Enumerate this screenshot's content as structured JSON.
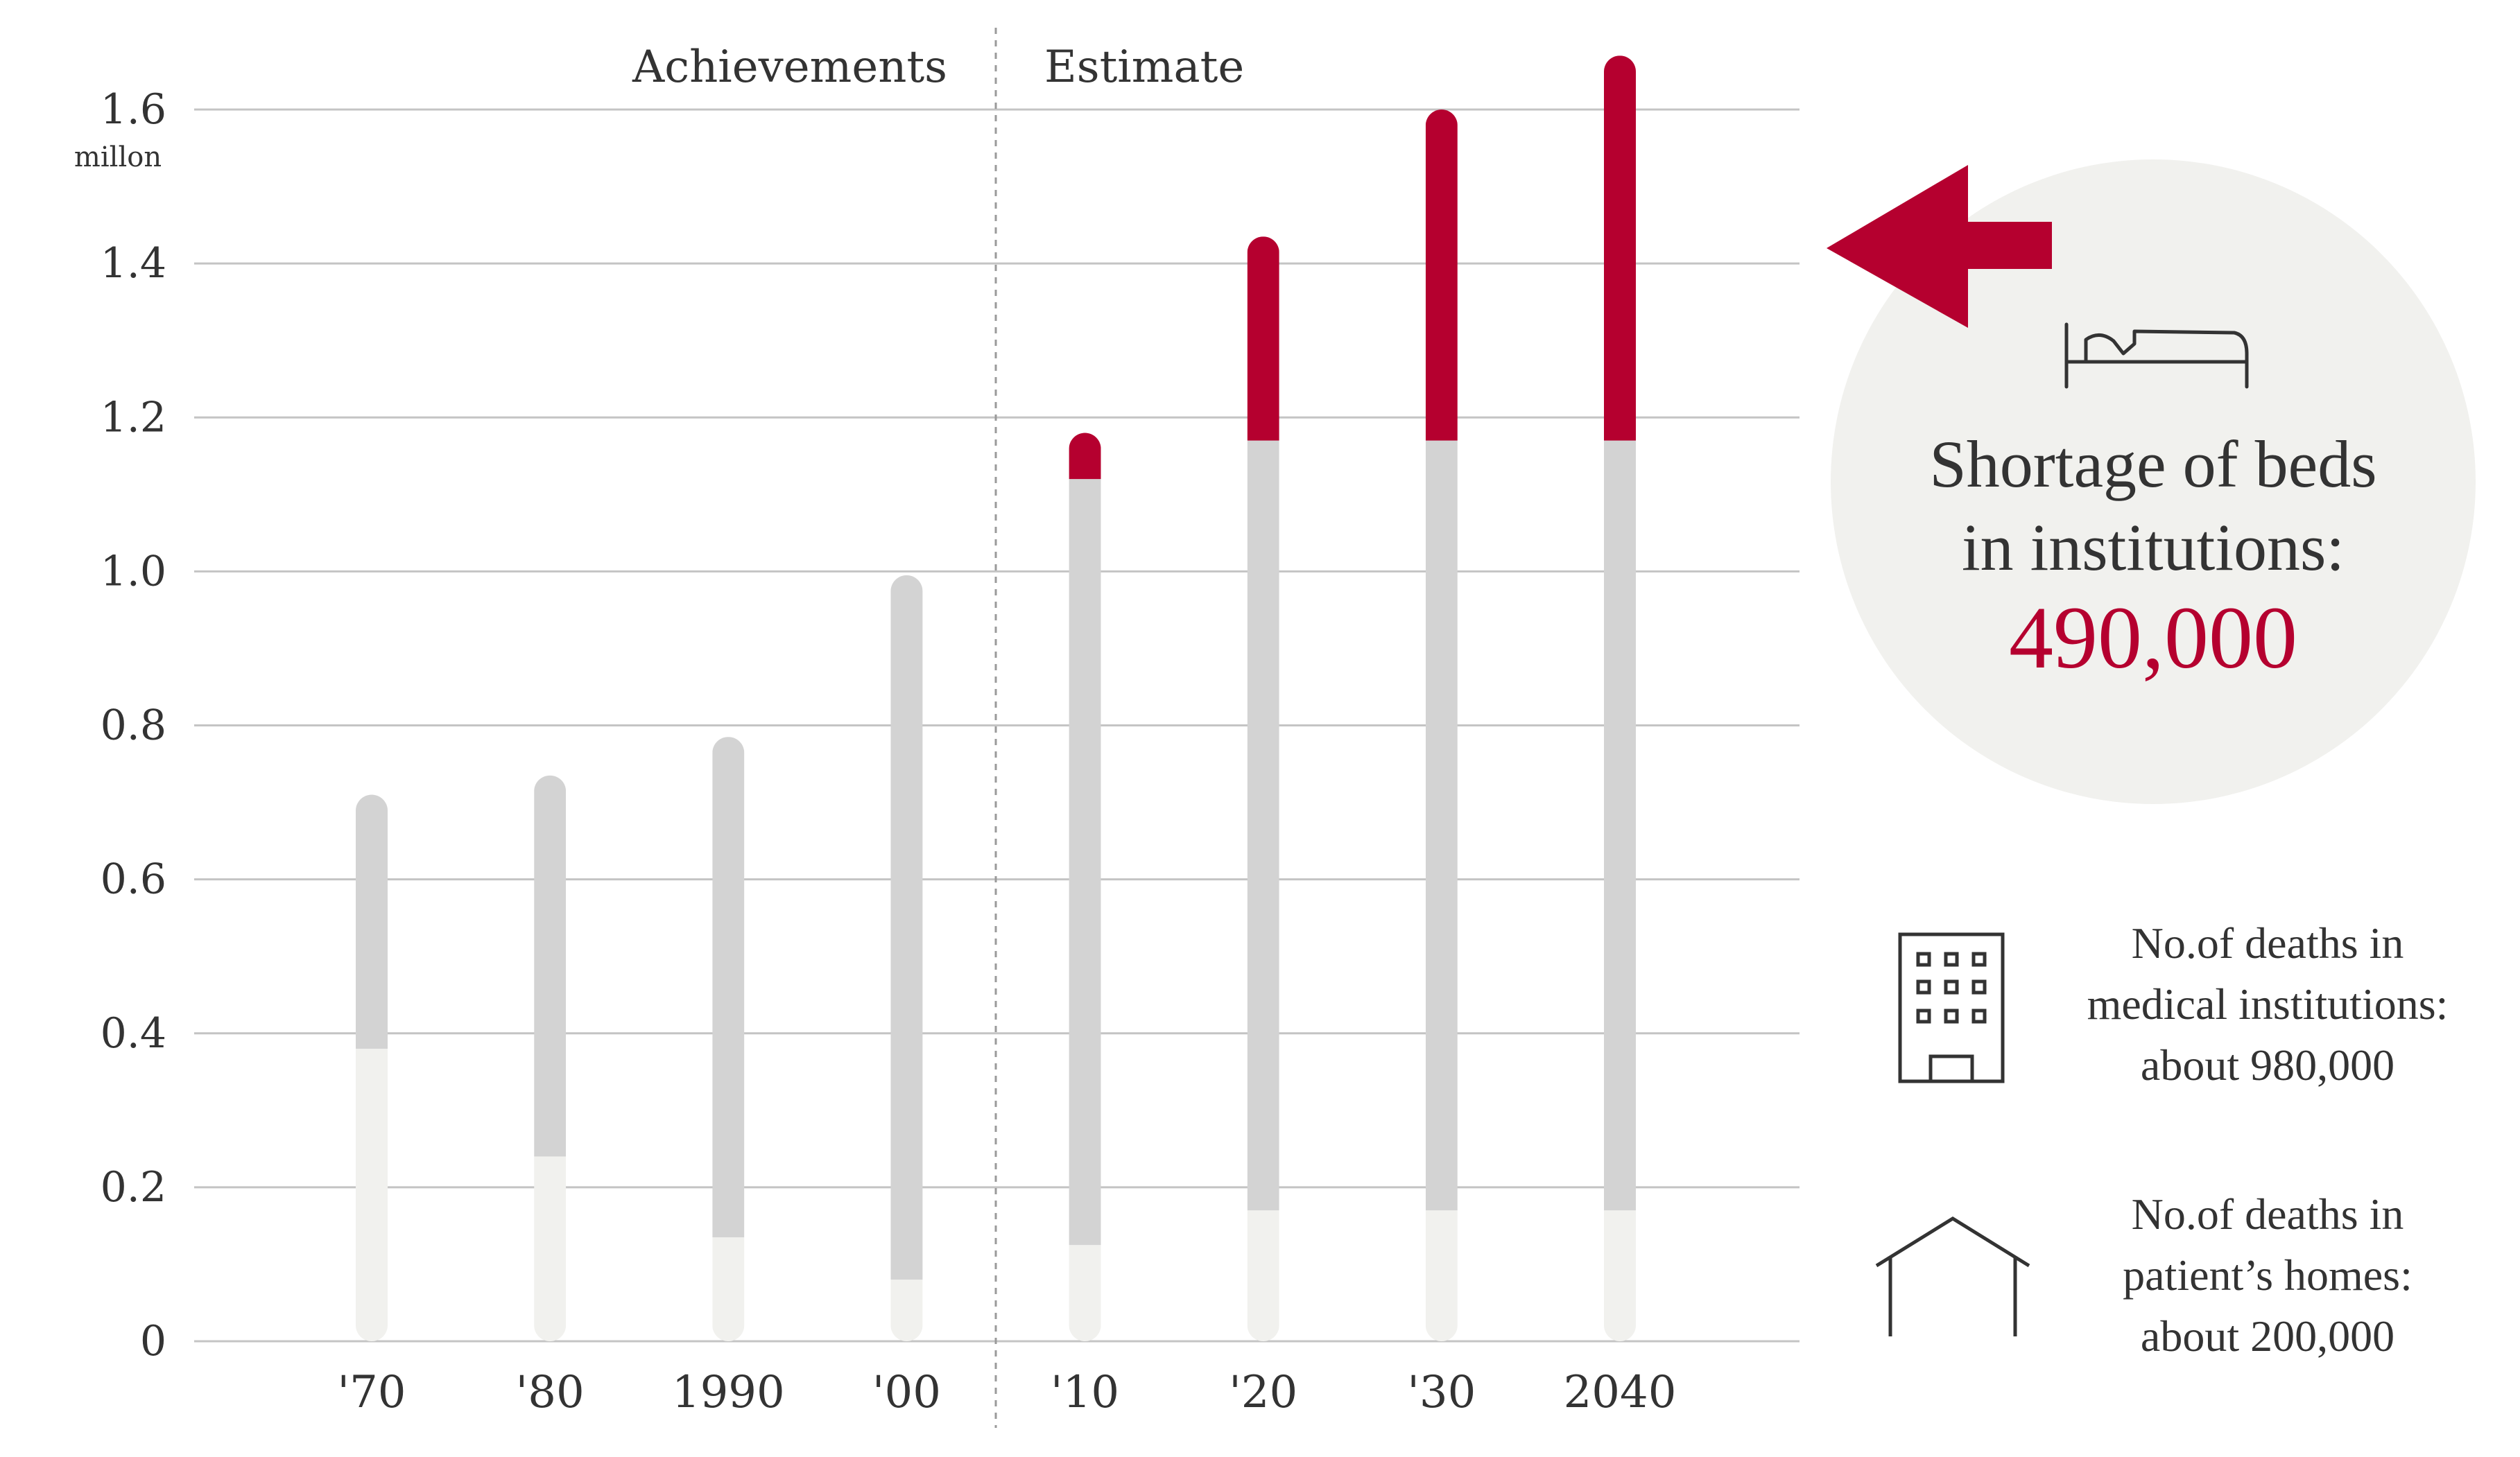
{
  "chart_data": {
    "type": "bar",
    "stacked": true,
    "categories": [
      "'70",
      "'80",
      "1990",
      "'00",
      "'10",
      "'20",
      "'30",
      "2040"
    ],
    "series": [
      {
        "key": "homes",
        "values": [
          0.38,
          0.24,
          0.135,
          0.08,
          0.125,
          0.17,
          0.17,
          0.17
        ],
        "color": "#f1f1ee"
      },
      {
        "key": "medical",
        "values": [
          0.33,
          0.495,
          0.65,
          0.915,
          0.995,
          1.0,
          1.0,
          1.0
        ],
        "color": "#d3d3d3"
      },
      {
        "key": "shortage",
        "values": [
          0,
          0,
          0,
          0,
          0.06,
          0.265,
          0.43,
          0.5
        ],
        "color": "#b5002f"
      }
    ],
    "ylim": [
      0,
      1.7
    ],
    "yticks": [
      "0",
      "0.2",
      "0.4",
      "0.6",
      "0.8",
      "1.0",
      "1.2",
      "1.4",
      "1.6"
    ],
    "y_unit": "millon",
    "sections": {
      "left": "Achievements",
      "right": "Estimate"
    },
    "divider_after_category": "'00",
    "grid": true
  },
  "callout": {
    "line1": "Shortage of  beds",
    "line2": "in institutions:",
    "amount": "490,000",
    "icon": "bed-icon",
    "background": "#f1f1ee",
    "arrow_color": "#b5002f"
  },
  "legend": {
    "medical": {
      "icon": "hospital-building-icon",
      "lines": [
        "No.of deaths in",
        "medical institutions:",
        "about 980,000"
      ]
    },
    "homes": {
      "icon": "house-icon",
      "lines": [
        "No.of deaths in",
        "patient’s homes:",
        "about 200,000"
      ]
    }
  }
}
